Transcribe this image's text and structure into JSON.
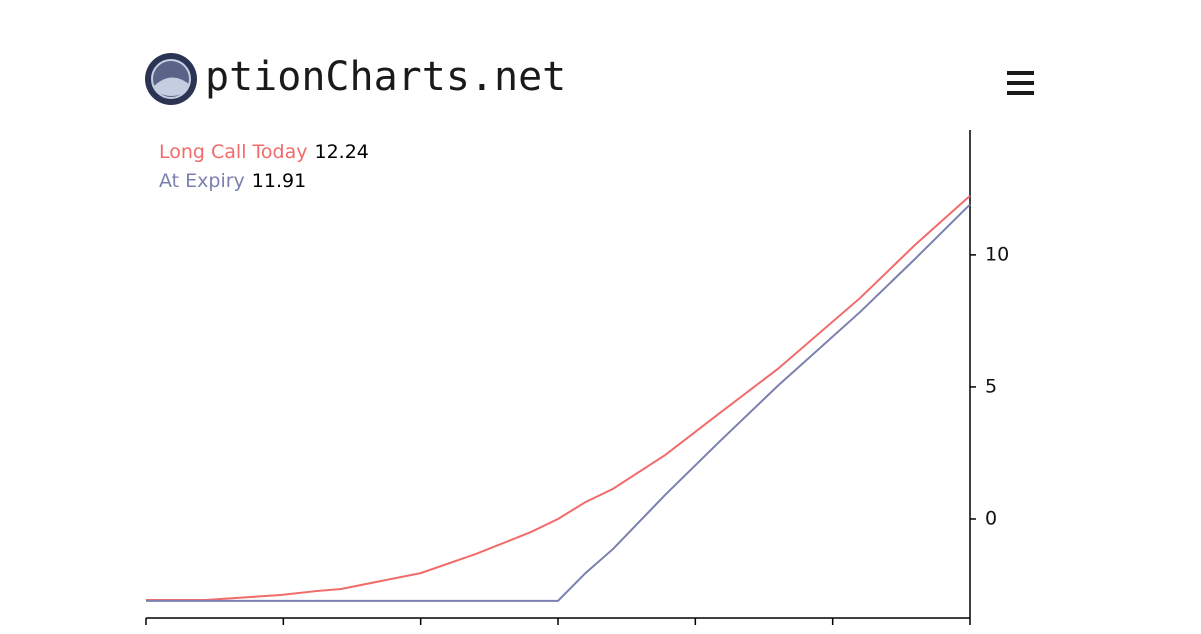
{
  "header": {
    "logo_text": "ptionCharts.net"
  },
  "chart_data": {
    "type": "line",
    "x": [
      0,
      0.43,
      0.98,
      1.24,
      1.42,
      2.0,
      2.4,
      2.8,
      3.0,
      3.2,
      3.4,
      3.78,
      4.18,
      4.6,
      5.2,
      5.6,
      6.0
    ],
    "series": [
      {
        "name": "Long Call Today",
        "color": "#f26b6b",
        "values": [
          -3.07,
          -3.07,
          -2.88,
          -2.73,
          -2.65,
          -2.05,
          -1.33,
          -0.5,
          0,
          0.64,
          1.14,
          2.42,
          4.02,
          5.68,
          8.37,
          10.38,
          12.24
        ]
      },
      {
        "name": "At Expiry",
        "color": "#7b80b0",
        "values": [
          -3.1,
          -3.1,
          -3.1,
          -3.1,
          -3.1,
          -3.1,
          -3.1,
          -3.1,
          -3.1,
          -2.05,
          -1.14,
          0.91,
          2.95,
          5.04,
          7.84,
          9.85,
          11.91
        ]
      }
    ],
    "xlim": [
      0,
      6
    ],
    "xticks": [
      0,
      1,
      2,
      3,
      4,
      5,
      6
    ],
    "ylim": [
      -3.75,
      14.73
    ],
    "yticks": [
      0,
      5,
      10
    ]
  }
}
